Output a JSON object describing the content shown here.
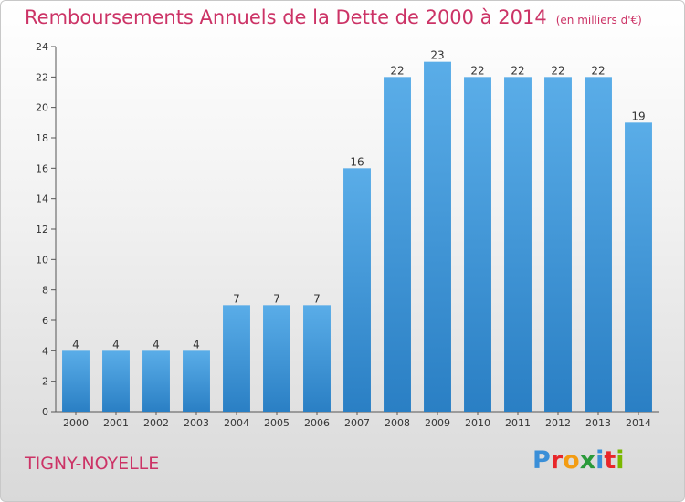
{
  "title": "Remboursements Annuels de la Dette de 2000 à 2014",
  "unit": "(en milliers d'€)",
  "commune": "TIGNY-NOYELLE",
  "logo": {
    "text": "Proxiti",
    "letter_colors": [
      "#3a8fd8",
      "#e8262a",
      "#f39c12",
      "#2a9a3a",
      "#3a8fd8",
      "#e8262a",
      "#7ab800"
    ]
  },
  "colors": {
    "title": "#cc3366",
    "bar_light": "#5aade8",
    "bar_dark": "#2a7fc4",
    "axis": "#555555",
    "grid": "#bbbbbb"
  },
  "chart_data": {
    "type": "bar",
    "categories": [
      "2000",
      "2001",
      "2002",
      "2003",
      "2004",
      "2005",
      "2006",
      "2007",
      "2008",
      "2009",
      "2010",
      "2011",
      "2012",
      "2013",
      "2014"
    ],
    "values": [
      4,
      4,
      4,
      4,
      7,
      7,
      7,
      16,
      22,
      23,
      22,
      22,
      22,
      22,
      19
    ],
    "ylim": [
      0,
      24
    ],
    "yticks": [
      0,
      2,
      4,
      6,
      8,
      10,
      12,
      14,
      16,
      18,
      20,
      22,
      24
    ],
    "grid": false,
    "data_labels": true
  }
}
